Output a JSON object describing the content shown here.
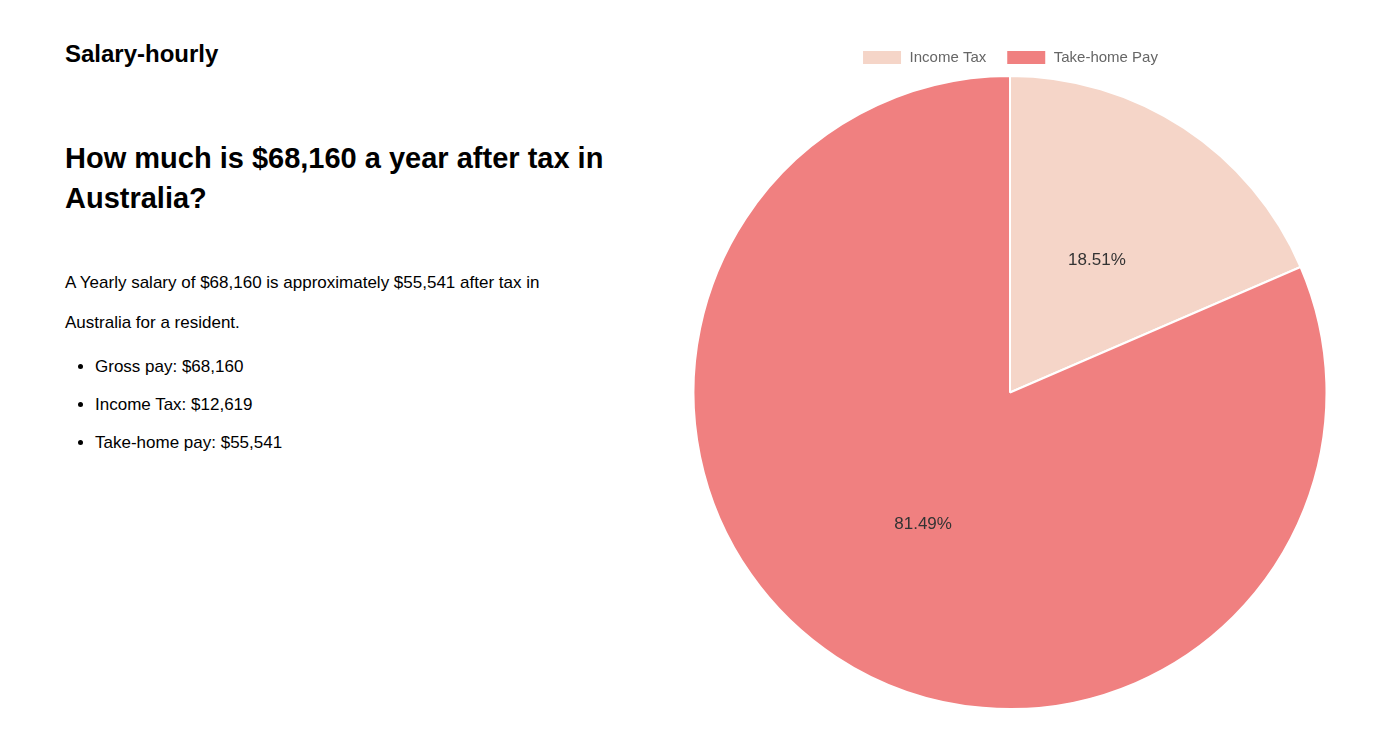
{
  "chart_data": {
    "type": "pie",
    "title": [
      "How much is $68,160 a year after tax in",
      "Australia?"
    ],
    "annotations": [
      "Salary-hourly",
      "A Yearly salary of $68,160 is approximately $55,541 after tax in",
      "Australia for a resident.",
      "Gross pay: $68,160",
      "Income Tax: $12,619",
      "Take-home pay: $55,541"
    ],
    "categories": [
      "Income Tax",
      "Take-home Pay"
    ],
    "values": [
      18.51,
      81.49
    ],
    "value_labels": [
      "18.51%",
      "81.49%"
    ],
    "colors": [
      "#f5d5c8",
      "#f08080"
    ],
    "data_labels": true,
    "legend": "top"
  }
}
